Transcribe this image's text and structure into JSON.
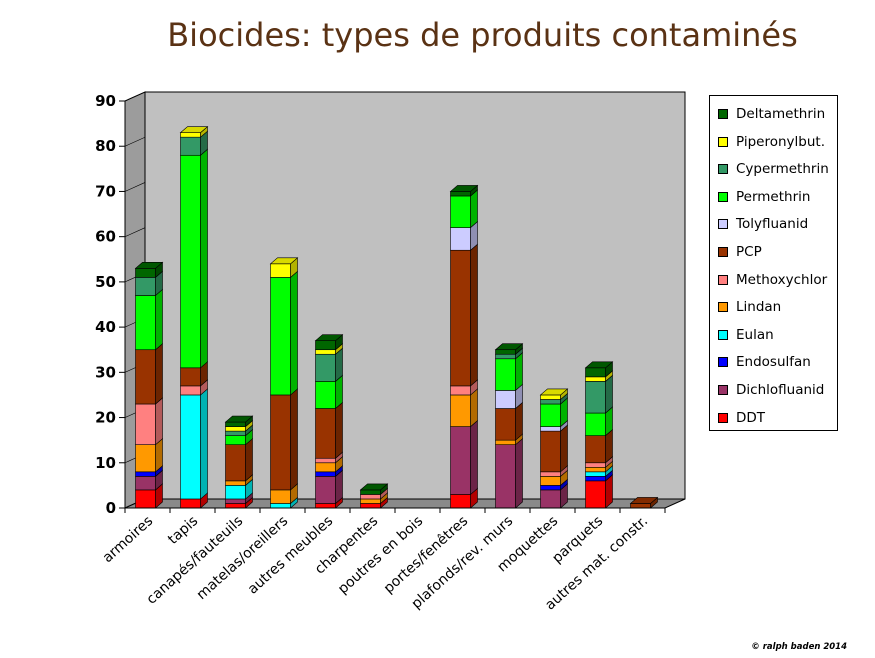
{
  "title": "Biocides: types de produits contaminés",
  "copyright": "© ralph baden 2014",
  "chart_data": {
    "type": "bar",
    "stacked": true,
    "three_d": true,
    "title": "Biocides: types de produits contaminés",
    "xlabel": "",
    "ylabel": "",
    "ylim": [
      0,
      90
    ],
    "yticks": [
      0,
      10,
      20,
      30,
      40,
      50,
      60,
      70,
      80,
      90
    ],
    "grid": false,
    "legend_position": "right",
    "categories": [
      "armoires",
      "tapis",
      "canapés/fauteuils",
      "matelas/oreillers",
      "autres meubles",
      "charpentes",
      "poutres en bois",
      "portes/fenêtres",
      "plafonds/rev. murs",
      "moquettes",
      "parquets",
      "autres mat. constr."
    ],
    "series": [
      {
        "name": "DDT",
        "color": "#ff0000",
        "values": [
          4,
          2,
          1,
          0,
          1,
          1,
          0,
          3,
          0,
          0,
          6,
          0
        ]
      },
      {
        "name": "Dichlofluanid",
        "color": "#993366",
        "values": [
          3,
          0,
          1,
          0,
          6,
          0,
          0,
          15,
          14,
          4,
          0,
          0
        ]
      },
      {
        "name": "Endosulfan",
        "color": "#0000ff",
        "values": [
          1,
          0,
          0,
          0,
          1,
          0,
          0,
          0,
          0,
          1,
          1,
          0
        ]
      },
      {
        "name": "Eulan",
        "color": "#00ffff",
        "values": [
          0,
          23,
          3,
          1,
          0,
          0,
          0,
          0,
          0,
          0,
          1,
          0
        ]
      },
      {
        "name": "Lindan",
        "color": "#ff9900",
        "values": [
          6,
          0,
          1,
          3,
          2,
          1,
          0,
          7,
          1,
          2,
          1,
          0
        ]
      },
      {
        "name": "Methoxychlor",
        "color": "#ff8080",
        "values": [
          9,
          2,
          0,
          0,
          1,
          1,
          0,
          2,
          0,
          1,
          1,
          0
        ]
      },
      {
        "name": "PCP",
        "color": "#993300",
        "values": [
          12,
          4,
          8,
          21,
          11,
          0,
          0,
          30,
          7,
          9,
          6,
          1
        ]
      },
      {
        "name": "Tolyfluanid",
        "color": "#ccccff",
        "values": [
          0,
          0,
          0,
          0,
          0,
          0,
          0,
          5,
          4,
          1,
          0,
          0
        ]
      },
      {
        "name": "Permethrin",
        "color": "#00ff00",
        "values": [
          12,
          47,
          2,
          26,
          6,
          0,
          0,
          7,
          7,
          5,
          5,
          0
        ]
      },
      {
        "name": "Cypermethrin",
        "color": "#339966",
        "values": [
          4,
          4,
          1,
          0,
          6,
          0,
          0,
          0,
          1,
          1,
          7,
          0
        ]
      },
      {
        "name": "Piperonylbut.",
        "color": "#ffff00",
        "values": [
          0,
          1,
          1,
          3,
          1,
          0,
          0,
          0,
          0,
          1,
          1,
          0
        ]
      },
      {
        "name": "Deltamethrin",
        "color": "#006600",
        "values": [
          2,
          0,
          1,
          0,
          2,
          1,
          0,
          1,
          1,
          0,
          2,
          0
        ]
      }
    ]
  },
  "legend_order": [
    "Deltamethrin",
    "Piperonylbut.",
    "Cypermethrin",
    "Permethrin",
    "Tolyfluanid",
    "PCP",
    "Methoxychlor",
    "Lindan",
    "Eulan",
    "Endosulfan",
    "Dichlofluanid",
    "DDT"
  ]
}
